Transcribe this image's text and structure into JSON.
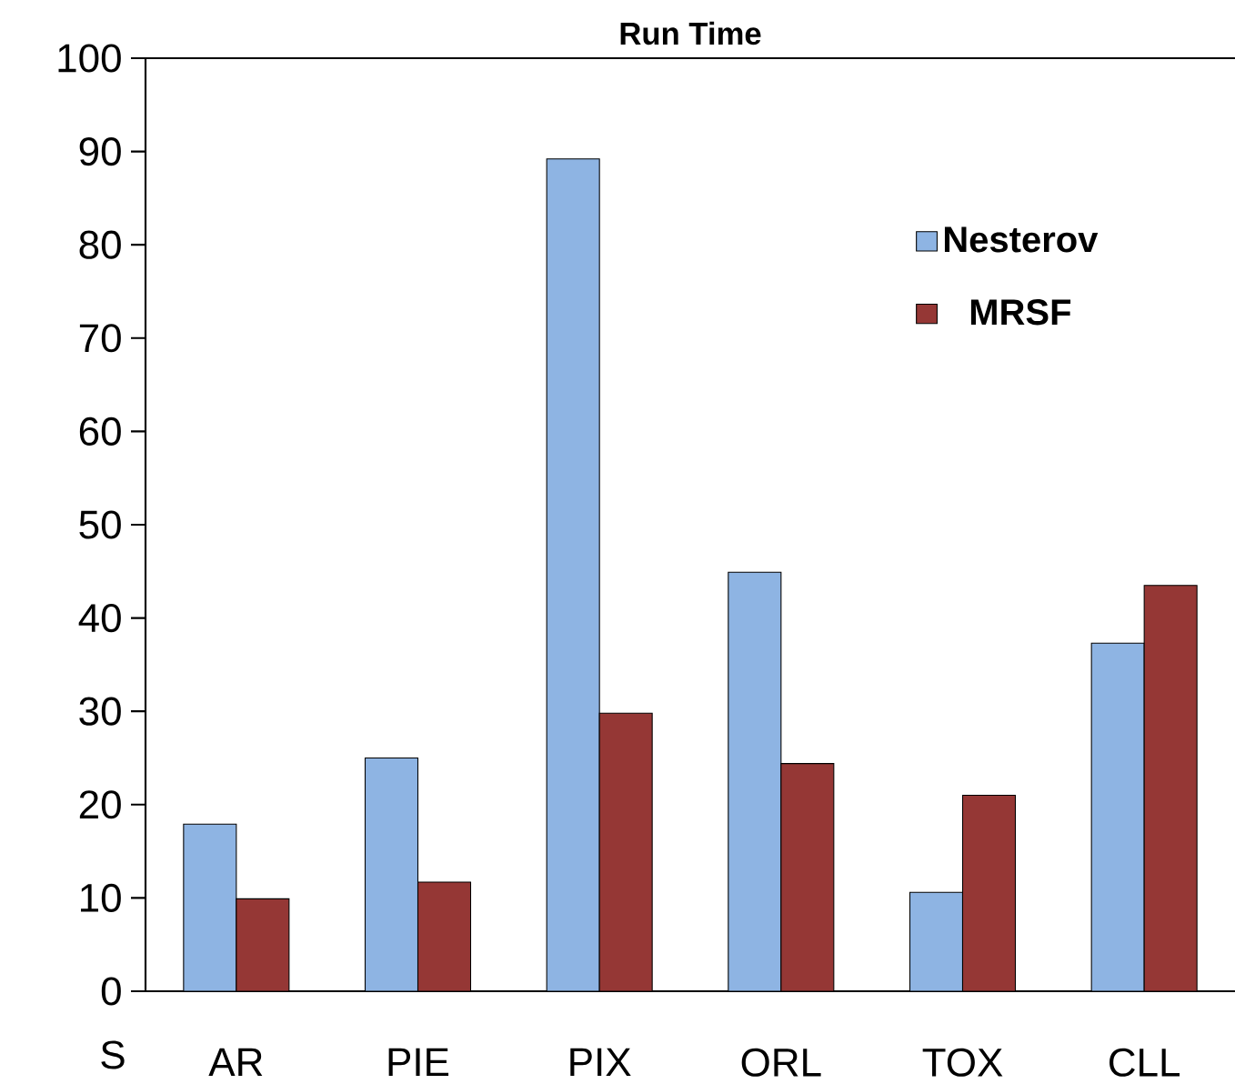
{
  "chart_data": {
    "type": "bar",
    "title": "Run Time",
    "categories": [
      "AR",
      "PIE",
      "PIX",
      "ORL",
      "TOX",
      "CLL"
    ],
    "series": [
      {
        "name": "Nesterov",
        "color": "#8eb4e3",
        "values": [
          17.9,
          25,
          89.2,
          44.9,
          10.6,
          37.3
        ]
      },
      {
        "name": "MRSF",
        "color": "#953735",
        "values": [
          9.9,
          11.7,
          29.8,
          24.4,
          21.0,
          43.5
        ]
      }
    ],
    "ylim": [
      0,
      100
    ],
    "yticks": [
      0,
      10,
      20,
      30,
      40,
      50,
      60,
      70,
      80,
      90,
      100
    ],
    "grid": false,
    "legend": "top right",
    "annotations": [
      "S"
    ]
  }
}
